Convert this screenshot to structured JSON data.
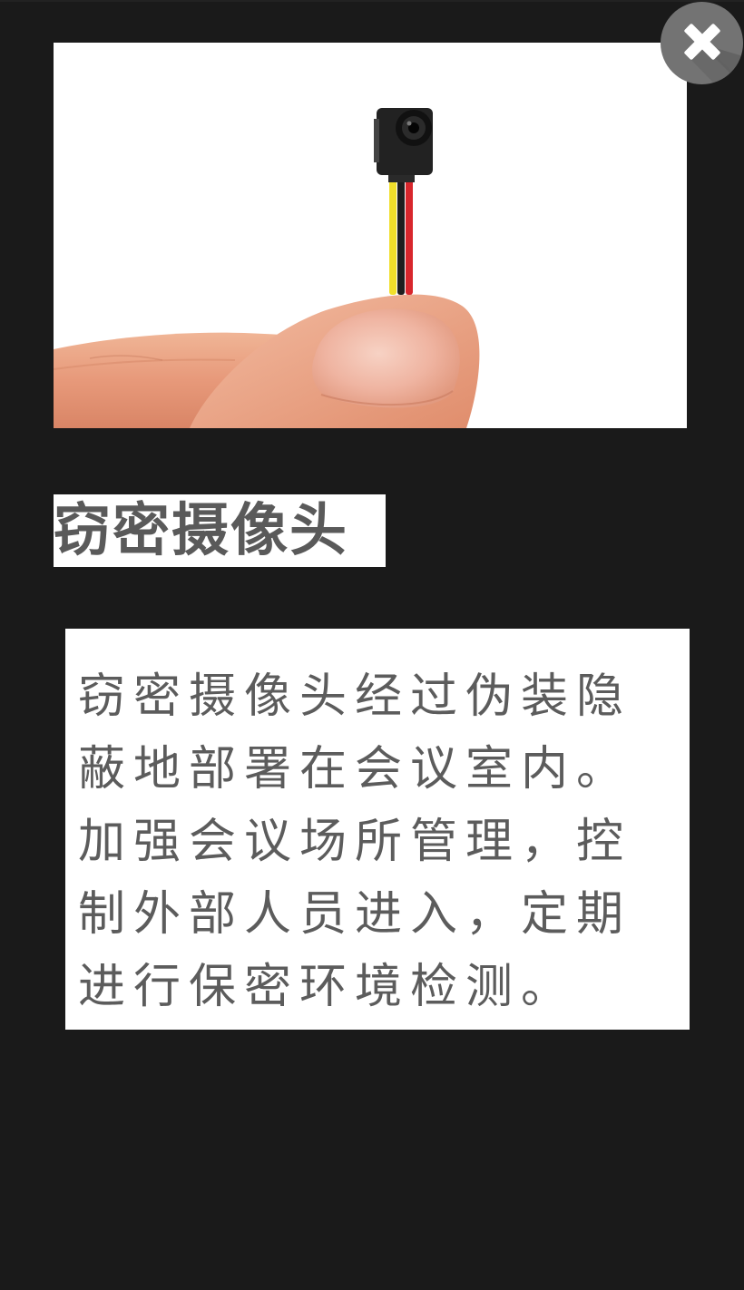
{
  "popup": {
    "title": "窃密摄像头",
    "description": "窃密摄像头经过伪装隐蔽地部署在会议室内。加强会议场所管理，控制外部人员进入，定期进行保密环境检测。",
    "close_icon": "close-icon"
  },
  "colors": {
    "title_text": "#5a5a5a",
    "body_text": "#5c5c5c",
    "close_button": "#737373",
    "grid_dot": "#b3b3b3",
    "grid_plus": "#1a1a1a"
  }
}
